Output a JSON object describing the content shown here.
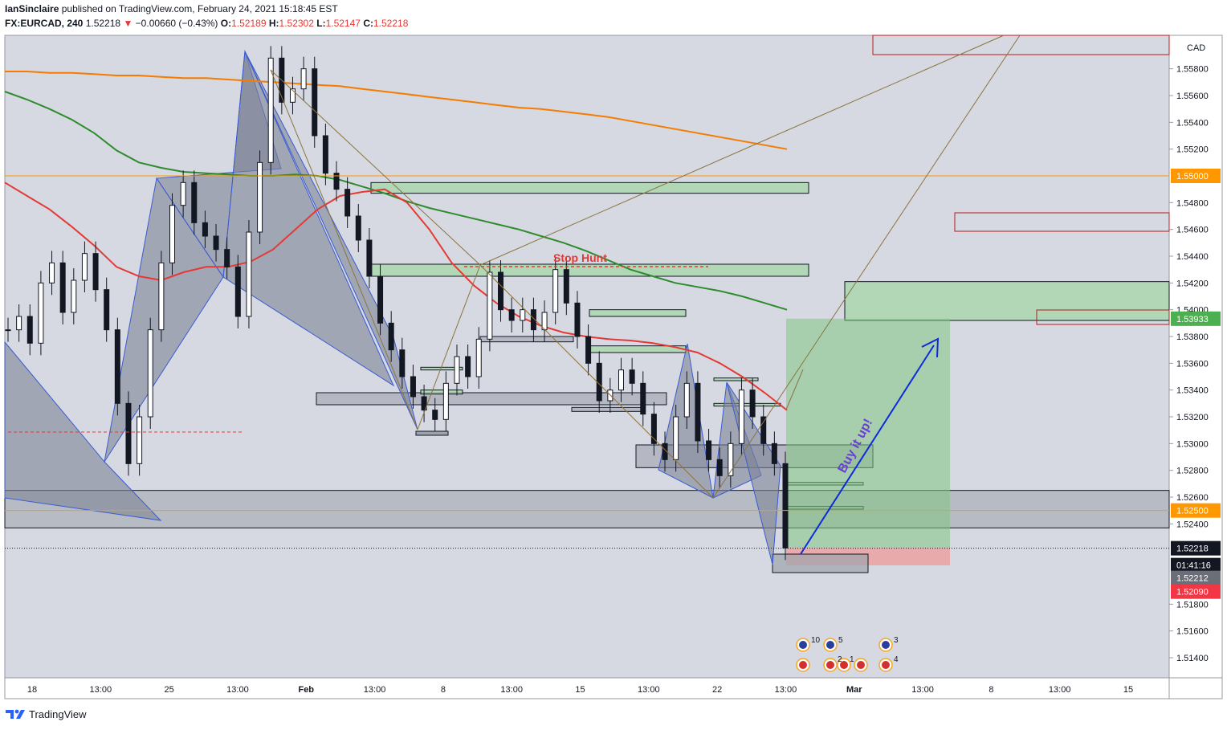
{
  "header": {
    "author": "IanSinclaire",
    "published_text": "published on TradingView.com, February 24, 2021 15:18:45 EST",
    "symbol": "FX:EURCAD, 240",
    "last": "1.52218",
    "change": "−0.00660 (−0.43%)",
    "o_label": "O:",
    "o": "1.52189",
    "h_label": "H:",
    "h": "1.52302",
    "l_label": "L:",
    "l": "1.52147",
    "c_label": "C:",
    "c": "1.52218"
  },
  "footer": {
    "brand": "TradingView"
  },
  "colors": {
    "plot_bg": "#d6d9e1",
    "candle": "#131722",
    "ema_red": "#e53935",
    "ema_green": "#2e8b2e",
    "ema_orange": "#f57c00",
    "pattern_fill": "#7d8496",
    "pattern_stroke": "#3a5bd1",
    "zone_green": "#a5d6a7",
    "zone_red_border": "#b71c1c",
    "target_zone": "#81c784",
    "stop_zone": "#ef9a9a",
    "label_orange": "#ff9800",
    "label_green": "#4caf50",
    "label_red": "#f23645",
    "arrow": "#0d2bd9",
    "annotation_purple": "#6a3fd4"
  },
  "chart_data": {
    "type": "candlestick",
    "currency": "CAD",
    "y_tick_labels": [
      "1.55800",
      "1.55600",
      "1.55400",
      "1.55200",
      "1.54800",
      "1.54600",
      "1.54400",
      "1.54200",
      "1.54000",
      "1.53800",
      "1.53600",
      "1.53400",
      "1.53200",
      "1.53000",
      "1.52800",
      "1.52600",
      "1.52400",
      "1.51800",
      "1.51600",
      "1.51400"
    ],
    "y_ticks": [
      1.558,
      1.556,
      1.554,
      1.552,
      1.548,
      1.546,
      1.544,
      1.542,
      1.54,
      1.538,
      1.536,
      1.534,
      1.532,
      1.53,
      1.528,
      1.526,
      1.524,
      1.518,
      1.516,
      1.514
    ],
    "ylim": [
      1.5125,
      1.5605
    ],
    "x_tick_labels": [
      "18",
      "13:00",
      "25",
      "13:00",
      "Feb",
      "13:00",
      "8",
      "13:00",
      "15",
      "13:00",
      "22",
      "13:00",
      "Mar",
      "13:00",
      "8",
      "13:00",
      "15"
    ],
    "price_labels": [
      {
        "text": "1.55000",
        "value": 1.55,
        "kind": "orange"
      },
      {
        "text": "1.53933",
        "value": 1.53933,
        "kind": "green"
      },
      {
        "text": "1.52500",
        "value": 1.525,
        "kind": "orange"
      },
      {
        "text": "1.52218",
        "value": 1.52218,
        "kind": "last"
      },
      {
        "text": "01:41:16",
        "value": null,
        "kind": "countdown"
      },
      {
        "text": "1.52212",
        "value": 1.52212,
        "kind": "gray"
      },
      {
        "text": "1.52090",
        "value": 1.5209,
        "kind": "red"
      }
    ],
    "annotations": [
      "Stop Hunt",
      "Buy it up!"
    ],
    "event_counts": [
      "10",
      "5",
      "2",
      "1",
      "3",
      "4"
    ],
    "horizontal_levels": [
      1.55,
      1.525,
      1.53933,
      1.52218
    ],
    "long_position": {
      "entry": 1.5222,
      "target": 1.53933,
      "stop": 1.5209
    },
    "ema_fast": [
      1.5495,
      1.5485,
      1.5475,
      1.5462,
      1.5448,
      1.5432,
      1.5425,
      1.5422,
      1.5428,
      1.5432,
      1.5432,
      1.5436,
      1.5445,
      1.546,
      1.5475,
      1.5485,
      1.5488,
      1.549,
      1.548,
      1.546,
      1.5435,
      1.5418,
      1.5405,
      1.5395,
      1.5388,
      1.5383,
      1.538,
      1.5378,
      1.5377,
      1.5375,
      1.5372,
      1.5368,
      1.536,
      1.535,
      1.5338,
      1.5325
    ],
    "ema_mid": [
      1.5563,
      1.5557,
      1.555,
      1.5542,
      1.5532,
      1.5519,
      1.551,
      1.5506,
      1.5503,
      1.5502,
      1.5501,
      1.55,
      1.55,
      1.5501,
      1.55,
      1.5497,
      1.5492,
      1.5487,
      1.5481,
      1.5476,
      1.5472,
      1.5468,
      1.5464,
      1.546,
      1.5455,
      1.545,
      1.5444,
      1.5437,
      1.543,
      1.5425,
      1.542,
      1.5417,
      1.5414,
      1.541,
      1.5405,
      1.54
    ],
    "ema_slow": [
      1.5578,
      1.5578,
      1.5577,
      1.5577,
      1.5576,
      1.5575,
      1.5575,
      1.5574,
      1.5573,
      1.5573,
      1.5572,
      1.5571,
      1.557,
      1.5569,
      1.5568,
      1.5567,
      1.5565,
      1.5563,
      1.5561,
      1.5559,
      1.5557,
      1.5555,
      1.5553,
      1.5551,
      1.555,
      1.5548,
      1.5546,
      1.5544,
      1.5541,
      1.5538,
      1.5535,
      1.5532,
      1.5529,
      1.5526,
      1.5523,
      1.552
    ],
    "closes": [
      1.5385,
      1.5395,
      1.5375,
      1.542,
      1.5435,
      1.5398,
      1.5422,
      1.5442,
      1.5415,
      1.5385,
      1.533,
      1.5285,
      1.532,
      1.5385,
      1.5435,
      1.5478,
      1.5495,
      1.5465,
      1.5455,
      1.5445,
      1.5432,
      1.5395,
      1.5458,
      1.551,
      1.5588,
      1.5555,
      1.5565,
      1.558,
      1.553,
      1.5502,
      1.549,
      1.547,
      1.5452,
      1.5425,
      1.539,
      1.537,
      1.535,
      1.5335,
      1.5325,
      1.5318,
      1.5345,
      1.5365,
      1.535,
      1.5378,
      1.5428,
      1.54,
      1.5392,
      1.54,
      1.5385,
      1.5398,
      1.543,
      1.5405,
      1.538,
      1.536,
      1.5332,
      1.534,
      1.5355,
      1.5345,
      1.5322,
      1.53,
      1.5288,
      1.532,
      1.5345,
      1.5302,
      1.5288,
      1.5276,
      1.53,
      1.534,
      1.532,
      1.53,
      1.5285,
      1.5222
    ]
  }
}
